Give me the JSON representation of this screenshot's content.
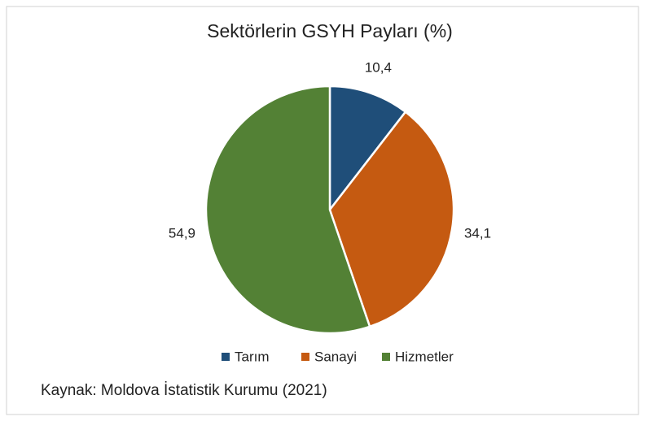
{
  "chart_data": {
    "type": "pie",
    "title": "Sektörlerin GSYH Payları (%)",
    "categories": [
      "Tarım",
      "Sanayi",
      "Hizmetler"
    ],
    "values": [
      10.4,
      34.1,
      54.9
    ],
    "value_labels": [
      "10,4",
      "34,1",
      "54,9"
    ],
    "colors": [
      "#1f4e79",
      "#c55a11",
      "#538135"
    ],
    "legend": "bottom",
    "note": "Kaynak: Moldova İstatistik Kurumu (2021)"
  }
}
